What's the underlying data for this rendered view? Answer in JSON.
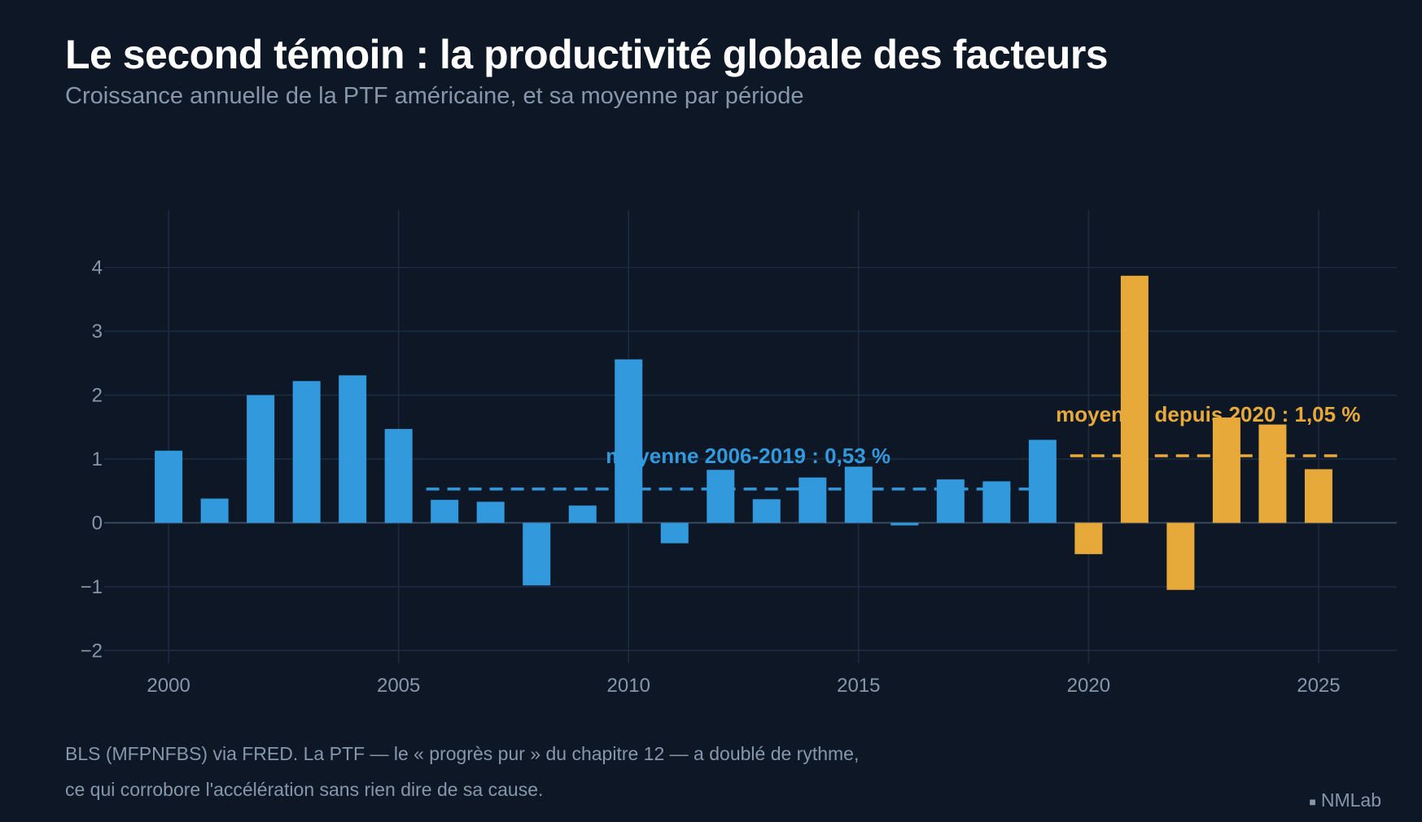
{
  "header": {
    "title": "Le second témoin : la productivité globale des facteurs",
    "subtitle": "Croissance annuelle de la PTF américaine, et sa moyenne par période"
  },
  "footer": {
    "note_line1": "BLS (MFPNFBS) via FRED. La PTF — le « progrès pur » du chapitre 12 — a doublé de rythme,",
    "note_line2": "ce qui corrobore l'accélération sans rien dire de sa cause.",
    "brand_icon": "square-dot-icon",
    "brand": "NMLab"
  },
  "chart_data": {
    "type": "bar",
    "title": "Le second témoin : la productivité globale des facteurs",
    "subtitle": "Croissance annuelle de la PTF américaine, et sa moyenne par période",
    "xlabel": "",
    "ylabel": "",
    "xlim": [
      1998.6,
      2026.7
    ],
    "ylim": [
      -2.2,
      4.9
    ],
    "xticks": [
      2000,
      2005,
      2010,
      2015,
      2020,
      2025
    ],
    "xtick_labels": [
      "2000",
      "2005",
      "2010",
      "2015",
      "2020",
      "2025"
    ],
    "yticks": [
      -2,
      -1,
      0,
      1,
      2,
      3,
      4
    ],
    "ytick_labels": [
      "−2",
      "−1",
      "0",
      "1",
      "2",
      "3",
      "4"
    ],
    "grid": true,
    "colors": {
      "pre2020": "#3399dd",
      "since2020": "#e8a93b"
    },
    "series": [
      {
        "color": "#3399dd",
        "x": [
          2000,
          2001,
          2002,
          2003,
          2004,
          2005,
          2006,
          2007,
          2008,
          2009,
          2010,
          2011,
          2012,
          2013,
          2014,
          2015,
          2016,
          2017,
          2018,
          2019
        ],
        "values": [
          1.13,
          0.38,
          2.0,
          2.22,
          2.31,
          1.47,
          0.36,
          0.33,
          -0.98,
          0.27,
          2.56,
          -0.32,
          0.83,
          0.37,
          0.71,
          0.88,
          -0.04,
          0.68,
          0.65,
          1.3
        ]
      },
      {
        "color": "#e8a93b",
        "x": [
          2020,
          2021,
          2022,
          2023,
          2024,
          2025
        ],
        "values": [
          -0.49,
          3.87,
          -1.05,
          1.65,
          1.54,
          0.84
        ]
      }
    ],
    "averages": [
      {
        "label": "moyenne 2006-2019 : 0,53 %",
        "value": 0.53,
        "x_start": 2005.6,
        "x_end": 2018.7,
        "color": "#3399dd"
      },
      {
        "label": "moyenne depuis 2020 : 1,05 %",
        "value": 1.05,
        "x_start": 2019.6,
        "x_end": 2025.5,
        "color": "#e8a93b"
      }
    ]
  }
}
